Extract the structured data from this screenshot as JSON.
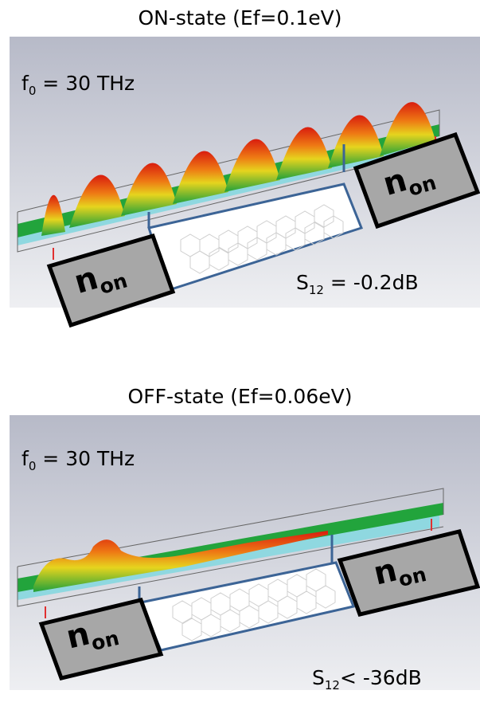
{
  "on_state": {
    "title": "ON-state (Ef=0.1eV)",
    "freq_label": "f",
    "freq_sub": "0",
    "freq_value": " = 30 THz",
    "s_label": "S",
    "s_sub": "12",
    "s_value": " = -0.2dB",
    "n_main": "n",
    "n_sub": "on"
  },
  "off_state": {
    "title": "OFF-state (Ef=0.06eV)",
    "freq_label": "f",
    "freq_sub": "0",
    "freq_value": " = 30 THz",
    "s_label": "S",
    "s_sub": "12",
    "s_value": "< -36dB",
    "n_main": "n",
    "n_sub": "on"
  },
  "colors": {
    "background_top": "#b9bcca",
    "background_bottom": "#e8e9ee",
    "waveguide_green": "#1fa53a",
    "substrate_cyan": "#8fd8e0",
    "box_gray": "#a7a7a7",
    "border_blue": "#3c6496",
    "peak_red": "#e02010",
    "peak_yellow": "#f0d020"
  }
}
